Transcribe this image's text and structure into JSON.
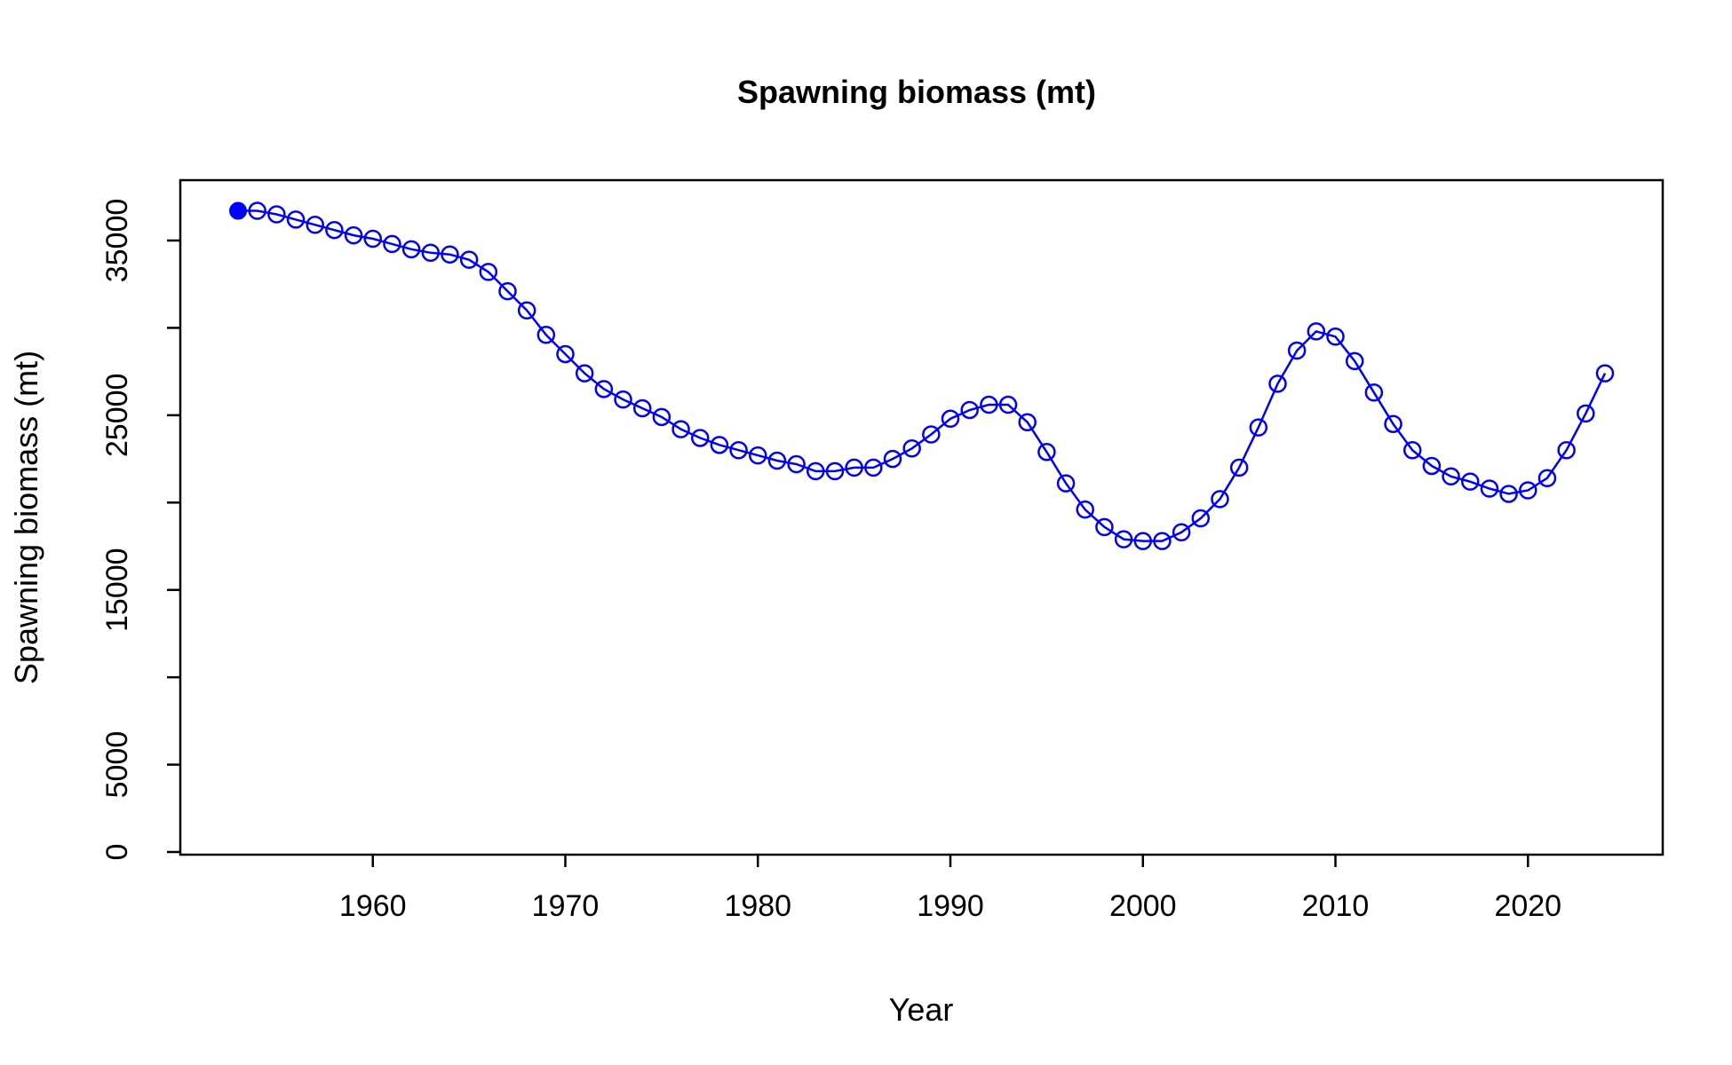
{
  "chart_data": {
    "type": "line",
    "title": "Spawning biomass (mt)",
    "xlabel": "Year",
    "ylabel": "Spawning biomass (mt)",
    "xlim": [
      1950,
      2027
    ],
    "ylim": [
      0,
      38500
    ],
    "x_ticks": [
      1960,
      1970,
      1980,
      1990,
      2000,
      2010,
      2020
    ],
    "y_ticks": [
      0,
      5000,
      15000,
      25000,
      35000
    ],
    "y_minor_ticks": [
      10000,
      20000,
      30000
    ],
    "color": "#0000ff",
    "grid": false,
    "first_point_filled": true,
    "x": [
      1953,
      1954,
      1955,
      1956,
      1957,
      1958,
      1959,
      1960,
      1961,
      1962,
      1963,
      1964,
      1965,
      1966,
      1967,
      1968,
      1969,
      1970,
      1971,
      1972,
      1973,
      1974,
      1975,
      1976,
      1977,
      1978,
      1979,
      1980,
      1981,
      1982,
      1983,
      1984,
      1985,
      1986,
      1987,
      1988,
      1989,
      1990,
      1991,
      1992,
      1993,
      1994,
      1995,
      1996,
      1997,
      1998,
      1999,
      2000,
      2001,
      2002,
      2003,
      2004,
      2005,
      2006,
      2007,
      2008,
      2009,
      2010,
      2011,
      2012,
      2013,
      2014,
      2015,
      2016,
      2017,
      2018,
      2019,
      2020,
      2021,
      2022,
      2023,
      2024
    ],
    "y": [
      36700,
      36700,
      36500,
      36200,
      35900,
      35600,
      35300,
      35100,
      34800,
      34500,
      34300,
      34200,
      33900,
      33200,
      32100,
      31000,
      29600,
      28500,
      27400,
      26500,
      25900,
      25400,
      24900,
      24200,
      23700,
      23300,
      23000,
      22700,
      22400,
      22200,
      21800,
      21800,
      22000,
      22000,
      22500,
      23100,
      23900,
      24800,
      25300,
      25600,
      25600,
      24600,
      22900,
      21100,
      19600,
      18600,
      17900,
      17800,
      17800,
      18300,
      19100,
      20200,
      22000,
      24300,
      26800,
      28700,
      29800,
      29500,
      28100,
      26300,
      24500,
      23000,
      22100,
      21500,
      21200,
      20800,
      20500,
      20700,
      21400,
      23000,
      25100,
      27400
    ]
  }
}
